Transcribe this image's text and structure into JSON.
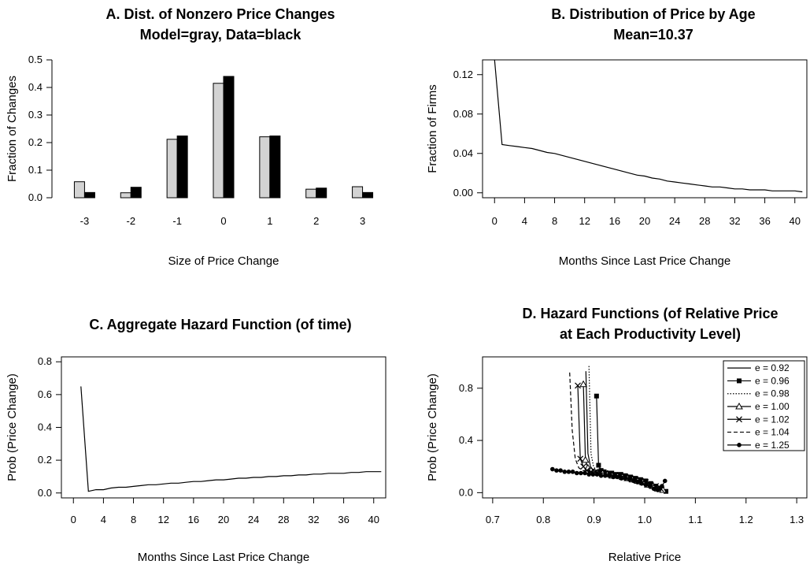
{
  "chart_data": [
    {
      "id": "A",
      "type": "bar",
      "title_lines": [
        "A. Dist. of Nonzero Price Changes",
        "Model=gray, Data=black"
      ],
      "xlabel": "Size of Price Change",
      "ylabel": "Fraction of Changes",
      "categories": [
        "-3",
        "-2",
        "-1",
        "0",
        "1",
        "2",
        "3"
      ],
      "ylim": [
        0,
        0.5
      ],
      "yticks": [
        0.0,
        0.1,
        0.2,
        0.3,
        0.4,
        0.5
      ],
      "ytick_labels": [
        "0.0",
        "0.1",
        "0.2",
        "0.3",
        "0.4",
        "0.5"
      ],
      "series": [
        {
          "name": "Model",
          "color": "#d3d3d3",
          "values": [
            0.058,
            0.018,
            0.212,
            0.415,
            0.221,
            0.031,
            0.04
          ]
        },
        {
          "name": "Data",
          "color": "#000000",
          "values": [
            0.019,
            0.038,
            0.224,
            0.44,
            0.224,
            0.035,
            0.019
          ]
        }
      ],
      "grid": false
    },
    {
      "id": "B",
      "type": "line",
      "title_lines": [
        "B. Distribution of Price by Age",
        "Mean=10.37"
      ],
      "xlabel": "Months Since Last Price Change",
      "ylabel": "Fraction of Firms",
      "xlim": [
        -1.6,
        41.6
      ],
      "ylim": [
        -0.005,
        0.135
      ],
      "xticks": [
        0,
        4,
        8,
        12,
        16,
        20,
        24,
        28,
        32,
        36,
        40
      ],
      "yticks": [
        0.0,
        0.04,
        0.08,
        0.12
      ],
      "ytick_labels": [
        "0.00",
        "0.04",
        "0.08",
        "0.12"
      ],
      "series": [
        {
          "x": [
            0,
            1,
            2,
            3,
            4,
            5,
            6,
            7,
            8,
            9,
            10,
            11,
            12,
            13,
            14,
            15,
            16,
            17,
            18,
            19,
            20,
            21,
            22,
            23,
            24,
            25,
            26,
            27,
            28,
            29,
            30,
            31,
            32,
            33,
            34,
            35,
            36,
            37,
            38,
            39,
            40,
            41
          ],
          "y": [
            0.135,
            0.049,
            0.048,
            0.047,
            0.046,
            0.045,
            0.043,
            0.041,
            0.04,
            0.038,
            0.036,
            0.034,
            0.032,
            0.03,
            0.028,
            0.026,
            0.024,
            0.022,
            0.02,
            0.018,
            0.017,
            0.015,
            0.014,
            0.012,
            0.011,
            0.01,
            0.009,
            0.008,
            0.007,
            0.006,
            0.006,
            0.005,
            0.004,
            0.004,
            0.003,
            0.003,
            0.003,
            0.002,
            0.002,
            0.002,
            0.002,
            0.001
          ]
        }
      ],
      "grid": false
    },
    {
      "id": "C",
      "type": "line",
      "title_lines": [
        "C. Aggregate Hazard Function (of time)"
      ],
      "xlabel": "Months Since Last Price Change",
      "ylabel": "Prob (Price Change)",
      "xlim": [
        -1.6,
        41.6
      ],
      "ylim": [
        -0.03,
        0.83
      ],
      "xticks": [
        0,
        4,
        8,
        12,
        16,
        20,
        24,
        28,
        32,
        36,
        40
      ],
      "yticks": [
        0.0,
        0.2,
        0.4,
        0.6,
        0.8
      ],
      "ytick_labels": [
        "0.0",
        "0.2",
        "0.4",
        "0.6",
        "0.8"
      ],
      "series": [
        {
          "x": [
            1,
            2,
            3,
            4,
            5,
            6,
            7,
            8,
            9,
            10,
            11,
            12,
            13,
            14,
            15,
            16,
            17,
            18,
            19,
            20,
            21,
            22,
            23,
            24,
            25,
            26,
            27,
            28,
            29,
            30,
            31,
            32,
            33,
            34,
            35,
            36,
            37,
            38,
            39,
            40,
            41
          ],
          "y": [
            0.65,
            0.01,
            0.02,
            0.02,
            0.03,
            0.035,
            0.035,
            0.04,
            0.045,
            0.05,
            0.05,
            0.055,
            0.06,
            0.06,
            0.065,
            0.07,
            0.07,
            0.075,
            0.08,
            0.08,
            0.085,
            0.09,
            0.09,
            0.095,
            0.095,
            0.1,
            0.1,
            0.105,
            0.105,
            0.11,
            0.11,
            0.115,
            0.115,
            0.12,
            0.12,
            0.12,
            0.125,
            0.125,
            0.13,
            0.13,
            0.13
          ]
        }
      ],
      "grid": false
    },
    {
      "id": "D",
      "type": "line",
      "title_lines": [
        "D. Hazard Functions (of Relative Price",
        "at Each Productivity Level)"
      ],
      "xlabel": "Relative Price",
      "ylabel": "Prob (Price Change)",
      "xlim": [
        0.68,
        1.32
      ],
      "ylim": [
        -0.04,
        1.04
      ],
      "xticks": [
        0.7,
        0.8,
        0.9,
        1.0,
        1.1,
        1.2,
        1.3
      ],
      "xtick_labels": [
        "0.7",
        "0.8",
        "0.9",
        "1.0",
        "1.1",
        "1.2",
        "1.3"
      ],
      "yticks": [
        0.0,
        0.4,
        0.8
      ],
      "ytick_labels": [
        "0.0",
        "0.4",
        "0.8"
      ],
      "legend": {
        "placement": "top-right"
      },
      "series": [
        {
          "name": "e = 0.92",
          "style": "solid",
          "marker": "none",
          "x": [
            0.884,
            0.888,
            0.893,
            0.899,
            0.906,
            0.914,
            0.922,
            0.931,
            0.94,
            0.95,
            0.96,
            0.97,
            0.98,
            0.99,
            1.0,
            1.01,
            1.02,
            1.03,
            1.04
          ],
          "y": [
            0.93,
            0.3,
            0.2,
            0.17,
            0.16,
            0.15,
            0.15,
            0.14,
            0.13,
            0.13,
            0.12,
            0.11,
            0.1,
            0.09,
            0.08,
            0.06,
            0.05,
            0.03,
            0.0
          ]
        },
        {
          "name": "e = 0.96",
          "style": "solid",
          "marker": "square",
          "x": [
            0.905,
            0.909,
            0.914,
            0.92,
            0.927,
            0.935,
            0.944,
            0.953,
            0.962,
            0.972,
            0.982,
            0.992,
            1.002,
            1.012,
            1.022,
            1.032,
            1.042
          ],
          "y": [
            0.74,
            0.21,
            0.17,
            0.16,
            0.15,
            0.15,
            0.14,
            0.14,
            0.13,
            0.12,
            0.11,
            0.1,
            0.09,
            0.07,
            0.05,
            0.03,
            0.01
          ]
        },
        {
          "name": "e = 0.98",
          "style": "dotted",
          "marker": "none",
          "x": [
            0.89,
            0.894,
            0.899,
            0.905,
            0.912,
            0.92,
            0.929,
            0.938,
            0.948,
            0.958,
            0.968,
            0.978,
            0.988,
            0.998,
            1.008,
            1.018,
            1.028,
            1.038
          ],
          "y": [
            0.97,
            0.3,
            0.2,
            0.17,
            0.16,
            0.16,
            0.15,
            0.14,
            0.14,
            0.13,
            0.12,
            0.11,
            0.1,
            0.08,
            0.07,
            0.05,
            0.03,
            0.01
          ]
        },
        {
          "name": "e = 1.00",
          "style": "solid",
          "marker": "triangle",
          "x": [
            0.879,
            0.883,
            0.888,
            0.894,
            0.901,
            0.909,
            0.917,
            0.926,
            0.936,
            0.946,
            0.956,
            0.966,
            0.976,
            0.986,
            0.996,
            1.006,
            1.016,
            1.026,
            1.036
          ],
          "y": [
            0.83,
            0.25,
            0.19,
            0.17,
            0.16,
            0.15,
            0.15,
            0.14,
            0.13,
            0.13,
            0.12,
            0.11,
            0.1,
            0.09,
            0.08,
            0.06,
            0.05,
            0.03,
            0.02
          ]
        },
        {
          "name": "e = 1.02",
          "style": "solid",
          "marker": "x",
          "x": [
            0.868,
            0.873,
            0.879,
            0.886,
            0.894,
            0.903,
            0.912,
            0.922,
            0.932,
            0.942,
            0.952,
            0.962,
            0.972,
            0.982,
            0.992,
            1.002,
            1.012,
            1.022,
            1.032
          ],
          "y": [
            0.82,
            0.26,
            0.2,
            0.17,
            0.16,
            0.16,
            0.15,
            0.15,
            0.14,
            0.13,
            0.13,
            0.12,
            0.11,
            0.1,
            0.09,
            0.08,
            0.06,
            0.05,
            0.03
          ]
        },
        {
          "name": "e = 1.04",
          "style": "dashed",
          "marker": "none",
          "x": [
            0.852,
            0.857,
            0.863,
            0.87,
            0.878,
            0.887,
            0.897,
            0.907,
            0.918,
            0.929,
            0.94,
            0.951,
            0.962,
            0.973,
            0.984,
            0.995,
            1.006,
            1.017,
            1.028,
            1.039
          ],
          "y": [
            0.92,
            0.48,
            0.26,
            0.19,
            0.17,
            0.16,
            0.16,
            0.15,
            0.15,
            0.14,
            0.13,
            0.13,
            0.12,
            0.11,
            0.1,
            0.09,
            0.08,
            0.07,
            0.05,
            0.04
          ]
        },
        {
          "name": "e = 1.25",
          "style": "solid",
          "marker": "filled-circle",
          "x": [
            0.818,
            0.826,
            0.834,
            0.842,
            0.85,
            0.858,
            0.866,
            0.874,
            0.882,
            0.89,
            0.898,
            0.906,
            0.914,
            0.922,
            0.93,
            0.938,
            0.946,
            0.954,
            0.962,
            0.97,
            0.978,
            0.986,
            0.994,
            1.002,
            1.01,
            1.018,
            1.026,
            1.034,
            1.04
          ],
          "y": [
            0.18,
            0.17,
            0.17,
            0.16,
            0.16,
            0.16,
            0.15,
            0.15,
            0.15,
            0.14,
            0.14,
            0.14,
            0.13,
            0.13,
            0.13,
            0.12,
            0.12,
            0.11,
            0.11,
            0.1,
            0.09,
            0.08,
            0.07,
            0.06,
            0.05,
            0.03,
            0.02,
            0.05,
            0.09
          ]
        }
      ],
      "grid": false
    }
  ]
}
